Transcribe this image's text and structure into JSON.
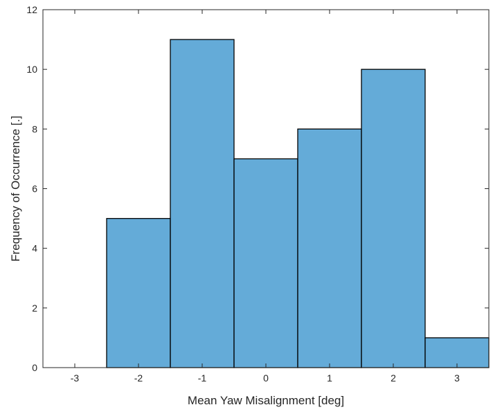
{
  "chart_data": {
    "type": "histogram",
    "title": "",
    "xlabel": "Mean Yaw Misalignment [deg]",
    "ylabel": "Frequency of Occurrence [.]",
    "xlim": [
      -3.5,
      3.5
    ],
    "ylim": [
      0,
      12
    ],
    "xticks": [
      -3,
      -2,
      -1,
      0,
      1,
      2,
      3
    ],
    "yticks": [
      0,
      2,
      4,
      6,
      8,
      10,
      12
    ],
    "bins": [
      {
        "x0": -2.5,
        "x1": -1.5,
        "value": 5
      },
      {
        "x0": -1.5,
        "x1": -0.5,
        "value": 11
      },
      {
        "x0": -0.5,
        "x1": 0.5,
        "value": 7
      },
      {
        "x0": 0.5,
        "x1": 1.5,
        "value": 8
      },
      {
        "x0": 1.5,
        "x1": 2.5,
        "value": 10
      },
      {
        "x0": 2.5,
        "x1": 3.5,
        "value": 1
      }
    ],
    "bar_color": "#4f9fd3",
    "edge_color": "#000000",
    "grid": false,
    "box": true
  }
}
